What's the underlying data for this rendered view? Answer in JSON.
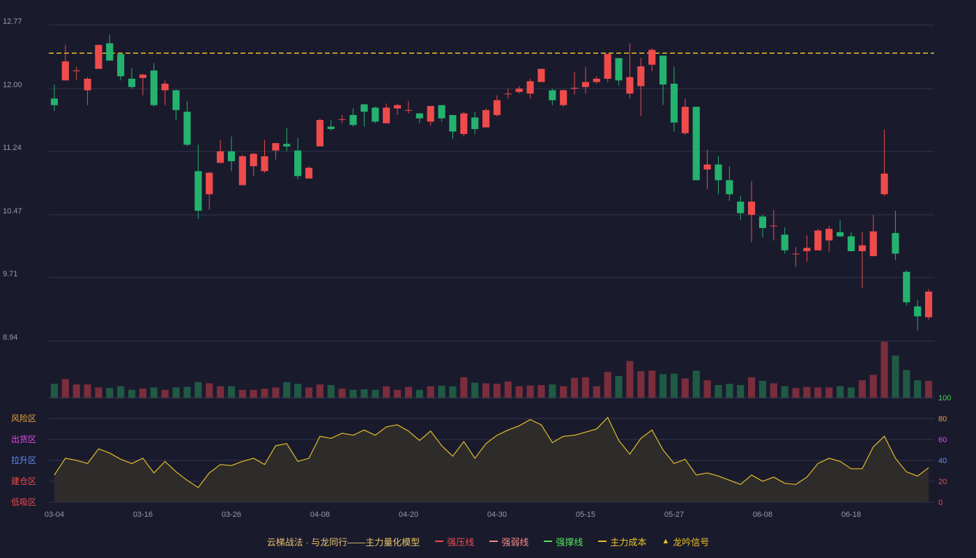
{
  "chart_data": {
    "type": "candlestick",
    "price_axis": {
      "ticks": [
        12.77,
        12.0,
        11.24,
        10.47,
        9.71,
        8.94
      ],
      "range": [
        8.94,
        12.77
      ]
    },
    "reference_lines": [
      {
        "label": "主力成本",
        "value": 12.43,
        "color": "#e8c425",
        "style": "dashed"
      }
    ],
    "x_labels": [
      {
        "index": 0,
        "label": "03-04"
      },
      {
        "index": 8,
        "label": "03-16"
      },
      {
        "index": 16,
        "label": "03-26"
      },
      {
        "index": 24,
        "label": "04-08"
      },
      {
        "index": 32,
        "label": "04-20"
      },
      {
        "index": 40,
        "label": "04-30"
      },
      {
        "index": 48,
        "label": "05-15"
      },
      {
        "index": 56,
        "label": "05-27"
      },
      {
        "index": 64,
        "label": "06-08"
      },
      {
        "index": 72,
        "label": "06-18"
      }
    ],
    "candles": [
      [
        11.88,
        11.8,
        12.05,
        11.73
      ],
      [
        12.1,
        12.33,
        12.53,
        12.1
      ],
      [
        12.22,
        12.22,
        12.26,
        12.1
      ],
      [
        11.98,
        12.12,
        12.14,
        11.8
      ],
      [
        12.24,
        12.53,
        12.53,
        12.24
      ],
      [
        12.55,
        12.34,
        12.65,
        12.34
      ],
      [
        12.42,
        12.15,
        12.42,
        12.1
      ],
      [
        12.12,
        12.02,
        12.25,
        12.0
      ],
      [
        12.13,
        12.17,
        12.18,
        11.92
      ],
      [
        12.22,
        11.8,
        12.31,
        11.78
      ],
      [
        11.98,
        12.06,
        12.1,
        11.8
      ],
      [
        11.98,
        11.74,
        11.99,
        11.62
      ],
      [
        11.72,
        11.32,
        11.85,
        11.3
      ],
      [
        11.0,
        10.52,
        11.32,
        10.42
      ],
      [
        10.72,
        10.98,
        10.99,
        10.53
      ],
      [
        11.1,
        11.24,
        11.38,
        11.1
      ],
      [
        11.24,
        11.12,
        11.42,
        11.0
      ],
      [
        10.83,
        11.18,
        11.2,
        10.83
      ],
      [
        11.06,
        11.21,
        11.22,
        10.94
      ],
      [
        11.0,
        11.18,
        11.38,
        10.98
      ],
      [
        11.25,
        11.34,
        11.34,
        11.14
      ],
      [
        11.33,
        11.3,
        11.52,
        11.24
      ],
      [
        11.25,
        10.94,
        11.4,
        10.9
      ],
      [
        10.91,
        11.04,
        11.06,
        10.91
      ],
      [
        11.3,
        11.62,
        11.64,
        11.3
      ],
      [
        11.54,
        11.51,
        11.62,
        11.49
      ],
      [
        11.63,
        11.63,
        11.68,
        11.58
      ],
      [
        11.68,
        11.56,
        11.76,
        11.54
      ],
      [
        11.81,
        11.72,
        11.81,
        11.54
      ],
      [
        11.77,
        11.6,
        11.78,
        11.58
      ],
      [
        11.58,
        11.77,
        11.82,
        11.58
      ],
      [
        11.76,
        11.8,
        11.82,
        11.68
      ],
      [
        11.74,
        11.74,
        11.85,
        11.7
      ],
      [
        11.7,
        11.64,
        11.7,
        11.58
      ],
      [
        11.6,
        11.79,
        11.79,
        11.55
      ],
      [
        11.8,
        11.64,
        11.8,
        11.6
      ],
      [
        11.68,
        11.48,
        11.68,
        11.39
      ],
      [
        11.45,
        11.7,
        11.72,
        11.42
      ],
      [
        11.65,
        11.51,
        11.72,
        11.45
      ],
      [
        11.53,
        11.74,
        11.76,
        11.53
      ],
      [
        11.68,
        11.86,
        11.92,
        11.66
      ],
      [
        11.94,
        11.94,
        12.0,
        11.88
      ],
      [
        11.96,
        12.0,
        12.03,
        11.94
      ],
      [
        11.94,
        12.09,
        12.12,
        11.88
      ],
      [
        12.08,
        12.24,
        12.24,
        12.08
      ],
      [
        11.98,
        11.86,
        12.0,
        11.8
      ],
      [
        11.8,
        11.98,
        11.99,
        11.78
      ],
      [
        12.0,
        12.01,
        12.2,
        11.93
      ],
      [
        12.02,
        12.08,
        12.26,
        11.94
      ],
      [
        12.08,
        12.12,
        12.15,
        12.06
      ],
      [
        12.12,
        12.42,
        12.42,
        12.08
      ],
      [
        12.37,
        12.1,
        12.37,
        12.04
      ],
      [
        11.94,
        12.14,
        12.55,
        11.88
      ],
      [
        12.03,
        12.27,
        12.37,
        11.67
      ],
      [
        12.29,
        12.47,
        12.49,
        12.21
      ],
      [
        12.4,
        12.05,
        12.4,
        11.8
      ],
      [
        12.06,
        11.59,
        12.27,
        11.48
      ],
      [
        11.46,
        11.78,
        11.88,
        11.44
      ],
      [
        11.78,
        10.89,
        11.78,
        10.89
      ],
      [
        11.02,
        11.08,
        11.26,
        10.78
      ],
      [
        11.08,
        10.89,
        11.18,
        10.72
      ],
      [
        10.89,
        10.72,
        11.06,
        10.64
      ],
      [
        10.63,
        10.49,
        10.7,
        10.41
      ],
      [
        10.47,
        10.63,
        10.88,
        10.14
      ],
      [
        10.45,
        10.31,
        10.47,
        10.2
      ],
      [
        10.34,
        10.34,
        10.53,
        10.16
      ],
      [
        10.23,
        10.04,
        10.32,
        10.0
      ],
      [
        10.0,
        10.0,
        10.08,
        9.84
      ],
      [
        10.03,
        10.07,
        10.22,
        9.9
      ],
      [
        10.04,
        10.28,
        10.3,
        10.04
      ],
      [
        10.16,
        10.3,
        10.34,
        10.02
      ],
      [
        10.26,
        10.21,
        10.41,
        10.2
      ],
      [
        10.21,
        10.03,
        10.26,
        10.03
      ],
      [
        10.03,
        10.1,
        10.26,
        9.58
      ],
      [
        9.97,
        10.27,
        10.47,
        9.97
      ],
      [
        10.72,
        10.97,
        11.5,
        10.7
      ],
      [
        10.25,
        10.0,
        10.52,
        9.92
      ],
      [
        9.78,
        9.41,
        9.8,
        9.37
      ],
      [
        9.36,
        9.24,
        9.44,
        9.07
      ],
      [
        9.23,
        9.54,
        9.57,
        9.2
      ]
    ],
    "volume": {
      "values": [
        24,
        32,
        23,
        23,
        18,
        17,
        20,
        14,
        16,
        18,
        14,
        18,
        19,
        27,
        25,
        20,
        20,
        14,
        14,
        16,
        18,
        27,
        24,
        18,
        23,
        22,
        16,
        14,
        15,
        14,
        20,
        14,
        19,
        14,
        20,
        21,
        20,
        35,
        26,
        25,
        24,
        28,
        20,
        21,
        22,
        23,
        20,
        34,
        35,
        20,
        44,
        37,
        62,
        45,
        46,
        40,
        41,
        33,
        46,
        30,
        22,
        24,
        22,
        35,
        29,
        25,
        20,
        17,
        19,
        18,
        18,
        20,
        18,
        30,
        39,
        94,
        71,
        47,
        30,
        29
      ]
    },
    "indicator": {
      "left_labels": [
        {
          "text": "风险区",
          "color": "#e6a23c"
        },
        {
          "text": "出货区",
          "color": "#e14fe0"
        },
        {
          "text": "拉升区",
          "color": "#5a8ef0"
        },
        {
          "text": "建仓区",
          "color": "#ef4b4b"
        },
        {
          "text": "低吸区",
          "color": "#ef4b4b"
        }
      ],
      "right_ticks": [
        {
          "text": "100",
          "color": "#3fdc4c"
        },
        {
          "text": "80",
          "color": "#e6a23c"
        },
        {
          "text": "60",
          "color": "#e14fe0"
        },
        {
          "text": "40",
          "color": "#5a8ef0"
        },
        {
          "text": "20",
          "color": "#ef4b4b"
        },
        {
          "text": "0",
          "color": "#ef4b4b"
        }
      ],
      "range": [
        0,
        100
      ],
      "values": [
        26,
        42,
        40,
        37,
        51,
        47,
        41,
        37,
        42,
        28,
        39,
        29,
        21,
        14,
        28,
        36,
        35,
        39,
        42,
        36,
        54,
        56,
        39,
        42,
        63,
        61,
        66,
        64,
        69,
        64,
        72,
        74,
        68,
        59,
        68,
        54,
        44,
        58,
        42,
        56,
        64,
        69,
        73,
        79,
        74,
        57,
        63,
        64,
        67,
        70,
        81,
        59,
        46,
        61,
        69,
        50,
        37,
        41,
        26,
        28,
        25,
        21,
        17,
        26,
        20,
        24,
        18,
        17,
        24,
        37,
        42,
        39,
        32,
        32,
        53,
        63,
        42,
        29,
        25,
        33
      ]
    },
    "legend": [
      {
        "text": "云梯战法 · 与龙同行——主力量化模型",
        "kind": "text"
      },
      {
        "text": "强压线",
        "kind": "line",
        "color": "#ef4b4b"
      },
      {
        "text": "强弱线",
        "kind": "dash",
        "color": "#f78a8a"
      },
      {
        "text": "强撑线",
        "kind": "line",
        "color": "#56e35e"
      },
      {
        "text": "主力成本",
        "kind": "dash",
        "color": "#e8c425"
      },
      {
        "text": "龙吟信号",
        "kind": "tri",
        "color": "#e8c425"
      }
    ],
    "colors": {
      "up": "#ef4b4b",
      "down": "#23b36e",
      "background": "#1a1a2d",
      "indicator_line": "#d4b42a"
    }
  }
}
